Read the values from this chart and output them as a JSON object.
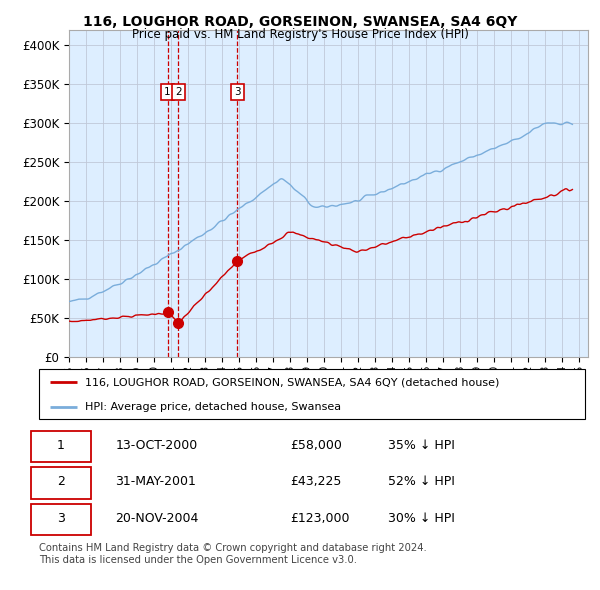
{
  "title": "116, LOUGHOR ROAD, GORSEINON, SWANSEA, SA4 6QY",
  "subtitle": "Price paid vs. HM Land Registry's House Price Index (HPI)",
  "ylim": [
    0,
    420000
  ],
  "yticks": [
    0,
    50000,
    100000,
    150000,
    200000,
    250000,
    300000,
    350000,
    400000
  ],
  "ytick_labels": [
    "£0",
    "£50K",
    "£100K",
    "£150K",
    "£200K",
    "£250K",
    "£300K",
    "£350K",
    "£400K"
  ],
  "xlim_start": 1995.0,
  "xlim_end": 2025.5,
  "hpi_color": "#7aaddb",
  "sale_color": "#cc0000",
  "vline_color": "#cc0000",
  "chart_bg_color": "#ddeeff",
  "background_color": "#ffffff",
  "grid_color": "#c0c8d8",
  "legend_label_sale": "116, LOUGHOR ROAD, GORSEINON, SWANSEA, SA4 6QY (detached house)",
  "legend_label_hpi": "HPI: Average price, detached house, Swansea",
  "sales": [
    {
      "date_num": 2000.79,
      "price": 58000,
      "label": "1"
    },
    {
      "date_num": 2001.42,
      "price": 43225,
      "label": "2"
    },
    {
      "date_num": 2004.9,
      "price": 123000,
      "label": "3"
    }
  ],
  "table_rows": [
    {
      "num": "1",
      "date": "13-OCT-2000",
      "price": "£58,000",
      "hpi": "35% ↓ HPI"
    },
    {
      "num": "2",
      "date": "31-MAY-2001",
      "price": "£43,225",
      "hpi": "52% ↓ HPI"
    },
    {
      "num": "3",
      "date": "20-NOV-2004",
      "price": "£123,000",
      "hpi": "30% ↓ HPI"
    }
  ],
  "footer": "Contains HM Land Registry data © Crown copyright and database right 2024.\nThis data is licensed under the Open Government Licence v3.0."
}
